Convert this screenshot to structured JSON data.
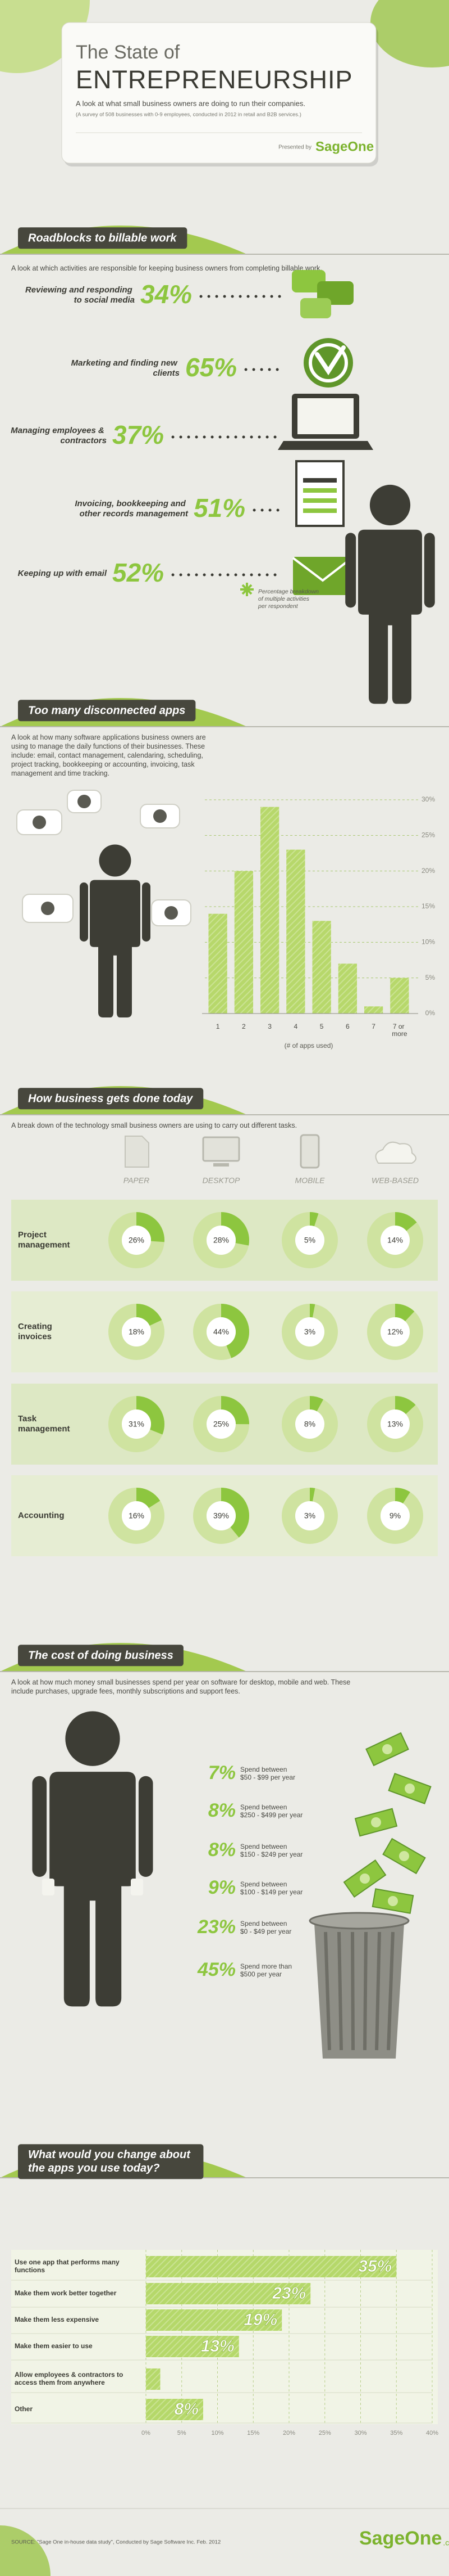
{
  "header": {
    "title_line1": "The State of",
    "title_line2": "ENTREPRENEURSHIP",
    "subtitle": "A look at what small business owners are doing to run their companies.",
    "survey_note": "(A survey of 508 businesses with 0-9 employees, conducted in 2012 in retail and B2B services.)",
    "presented_by": "Presented by",
    "brand": "SageOne"
  },
  "chart_data": [
    {
      "type": "callouts",
      "title": "Roadblocks to billable work",
      "description": "A look at which activities are responsible for keeping business owners from completing billable work.",
      "categories": [
        "Reviewing and responding to social media",
        "Marketing and finding new clients",
        "Managing employees & contractors",
        "Invoicing, bookkeeping and other records management",
        "Keeping up with email"
      ],
      "values": [
        34,
        65,
        37,
        51,
        52
      ],
      "value_labels": [
        "34%",
        "65%",
        "37%",
        "51%",
        "52%"
      ],
      "color": "#8dc63f",
      "note": "Percentage breakdown of multiple activities per respondent"
    },
    {
      "type": "bar",
      "title": "Too many disconnected apps",
      "description": "A look at how many software applications business owners are using to manage the daily functions of their businesses. These include: email, contact management, calendaring, scheduling, project tracking, bookkeeping or accounting, invoicing, task management and time tracking.",
      "categories": [
        "1",
        "2",
        "3",
        "4",
        "5",
        "6",
        "7",
        "7 or more"
      ],
      "values": [
        14,
        20,
        29,
        23,
        13,
        7,
        1,
        5
      ],
      "color": "#b7d86b",
      "ylim": [
        0,
        30
      ],
      "yticks": [
        {
          "value": 0,
          "label": "0%"
        },
        {
          "value": 5,
          "label": "5%"
        },
        {
          "value": 10,
          "label": "10%"
        },
        {
          "value": 15,
          "label": "15%"
        },
        {
          "value": 20,
          "label": "20%"
        },
        {
          "value": 25,
          "label": "25%"
        },
        {
          "value": 30,
          "label": "30%"
        }
      ],
      "xlabel": "(# of apps used)",
      "grid": true
    },
    {
      "type": "donut-grid",
      "title": "How business gets done today",
      "description": "A break down of the technology small business owners are using to carry out different tasks.",
      "categories": [
        "Project management",
        "Creating invoices",
        "Task management",
        "Accounting"
      ],
      "color": "#8dc63f",
      "series": [
        {
          "name": "PAPER",
          "values": [
            26,
            18,
            31,
            16
          ],
          "value_labels": [
            "26%",
            "18%",
            "31%",
            "16%"
          ]
        },
        {
          "name": "DESKTOP",
          "values": [
            28,
            44,
            25,
            39
          ],
          "value_labels": [
            "28%",
            "44%",
            "25%",
            "39%"
          ]
        },
        {
          "name": "MOBILE",
          "values": [
            5,
            3,
            8,
            3
          ],
          "value_labels": [
            "5%",
            "3%",
            "8%",
            "3%"
          ]
        },
        {
          "name": "WEB-BASED",
          "values": [
            14,
            12,
            13,
            9
          ],
          "value_labels": [
            "14%",
            "12%",
            "13%",
            "9%"
          ]
        }
      ]
    },
    {
      "type": "spend-list",
      "title": "The cost of doing business",
      "description": "A look at how much money small businesses spend per year on software for desktop, mobile and web. These include purchases, upgrade fees, monthly subscriptions and support fees.",
      "categories": [
        "Spend between $50 - $99 per year",
        "Spend between $250 - $499 per year",
        "Spend between $150 - $249 per year",
        "Spend between $100 - $149 per year",
        "Spend between $0 - $49 per year",
        "Spend more than $500 per year"
      ],
      "values": [
        7,
        8,
        8,
        9,
        23,
        45
      ],
      "value_labels": [
        "7%",
        "8%",
        "8%",
        "9%",
        "23%",
        "45%"
      ],
      "color": "#8dc63f"
    },
    {
      "type": "hbar",
      "title": "What would you change about the apps you use today?",
      "categories": [
        "Use one app that performs many functions",
        "Make them work better together",
        "Make them less expensive",
        "Make them easier to use",
        "Allow employees & contractors to access them from anywhere",
        "Other"
      ],
      "values": [
        35,
        23,
        19,
        13,
        2,
        8
      ],
      "value_labels": [
        "35%",
        "23%",
        "19%",
        "13%",
        null,
        "8%"
      ],
      "color": "#b5d86a",
      "xlim": [
        0,
        40
      ],
      "xticks": [
        {
          "value": 0,
          "label": "0%"
        },
        {
          "value": 5,
          "label": "5%"
        },
        {
          "value": 10,
          "label": "10%"
        },
        {
          "value": 15,
          "label": "15%"
        },
        {
          "value": 20,
          "label": "20%"
        },
        {
          "value": 25,
          "label": "25%"
        },
        {
          "value": 30,
          "label": "30%"
        },
        {
          "value": 35,
          "label": "35%"
        },
        {
          "value": 40,
          "label": "40%"
        }
      ],
      "grid": true
    }
  ],
  "footer": {
    "source": "SOURCE: \"Sage One in-house data study\", Conducted by Sage Software Inc. Feb. 2012",
    "brand": "SageOne",
    "domain": ".com"
  }
}
